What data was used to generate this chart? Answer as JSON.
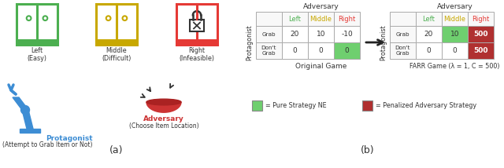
{
  "bg_color": "#ffffff",
  "col_labels": [
    "Left",
    "Middle",
    "Right"
  ],
  "col_colors": [
    "#4caf50",
    "#c8a800",
    "#e53935"
  ],
  "row_labels": [
    "Grab",
    "Don't\nGrab"
  ],
  "orig_values": [
    [
      20,
      10,
      -10
    ],
    [
      0,
      0,
      0
    ]
  ],
  "farr_values": [
    [
      20,
      10,
      500
    ],
    [
      0,
      0,
      500
    ]
  ],
  "orig_highlights": [
    [
      false,
      false,
      false
    ],
    [
      false,
      false,
      true
    ]
  ],
  "farr_green": [
    [
      false,
      true,
      false
    ],
    [
      false,
      false,
      false
    ]
  ],
  "farr_red": [
    [
      false,
      false,
      true
    ],
    [
      false,
      false,
      true
    ]
  ],
  "highlight_green": "#6fcf6f",
  "highlight_red": "#b03030",
  "legend_green": "#6fcf6f",
  "legend_red": "#b03030",
  "cabinet_green": "#4caf50",
  "cabinet_yellow": "#c8a800",
  "cabinet_red": "#e53935",
  "protagonist_color": "#3d8dd4",
  "adversary_color": "#cc3333"
}
